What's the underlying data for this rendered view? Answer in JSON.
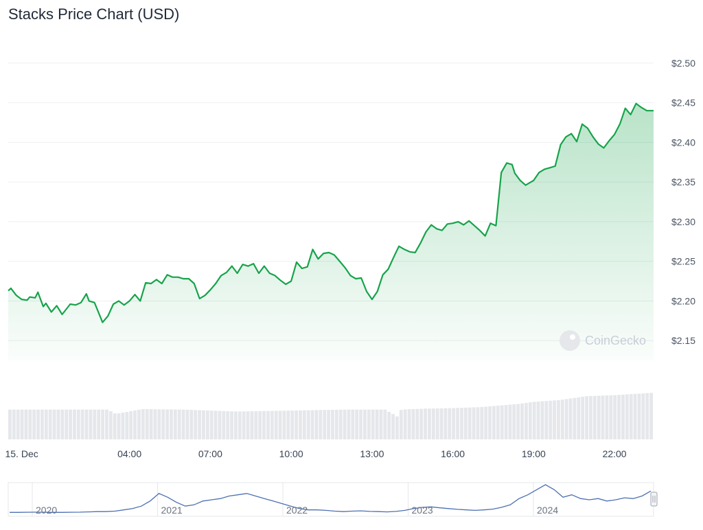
{
  "title": "Stacks Price Chart (USD)",
  "watermark": "CoinGecko",
  "chart_data": {
    "type": "area",
    "title": "Stacks Price Chart (USD)",
    "currency": "USD",
    "ylim": [
      2.125,
      2.525
    ],
    "yticks": [
      2.15,
      2.2,
      2.25,
      2.3,
      2.35,
      2.4,
      2.45,
      2.5
    ],
    "ytick_labels": [
      "$2.15",
      "$2.20",
      "$2.25",
      "$2.30",
      "$2.35",
      "$2.40",
      "$2.45",
      "$2.50"
    ],
    "xlim_hours": [
      -0.5,
      23.45
    ],
    "xticks": [
      0,
      4,
      7,
      10,
      13,
      16,
      19,
      22
    ],
    "xtick_labels": [
      "15. Dec",
      "04:00",
      "07:00",
      "10:00",
      "13:00",
      "16:00",
      "19:00",
      "22:00"
    ],
    "price_series": {
      "name": "Price",
      "color": "#16a34a",
      "hours": [
        -0.5,
        -0.4,
        -0.2,
        0.0,
        0.2,
        0.3,
        0.5,
        0.6,
        0.8,
        0.9,
        1.1,
        1.3,
        1.5,
        1.8,
        2.0,
        2.2,
        2.4,
        2.5,
        2.7,
        3.0,
        3.2,
        3.4,
        3.6,
        3.8,
        4.0,
        4.2,
        4.4,
        4.6,
        4.8,
        5.0,
        5.2,
        5.4,
        5.6,
        5.8,
        6.0,
        6.2,
        6.4,
        6.6,
        6.8,
        7.0,
        7.2,
        7.4,
        7.6,
        7.8,
        8.0,
        8.2,
        8.4,
        8.6,
        8.8,
        9.0,
        9.2,
        9.4,
        9.6,
        9.8,
        10.0,
        10.2,
        10.4,
        10.6,
        10.8,
        11.0,
        11.2,
        11.4,
        11.6,
        11.8,
        12.0,
        12.2,
        12.4,
        12.6,
        12.8,
        13.0,
        13.2,
        13.4,
        13.6,
        13.8,
        14.0,
        14.2,
        14.4,
        14.6,
        14.8,
        15.0,
        15.2,
        15.4,
        15.6,
        15.8,
        16.0,
        16.2,
        16.4,
        16.6,
        16.8,
        17.0,
        17.2,
        17.4,
        17.6,
        17.8,
        18.0,
        18.2,
        18.3,
        18.5,
        18.7,
        19.0,
        19.2,
        19.4,
        19.6,
        19.8,
        20.0,
        20.2,
        20.4,
        20.6,
        20.8,
        21.0,
        21.2,
        21.4,
        21.6,
        21.8,
        22.0,
        22.2,
        22.4,
        22.6,
        22.8,
        23.0,
        23.2,
        23.45
      ],
      "values": [
        2.213,
        2.216,
        2.207,
        2.202,
        2.201,
        2.205,
        2.204,
        2.211,
        2.193,
        2.197,
        2.186,
        2.194,
        2.183,
        2.196,
        2.195,
        2.198,
        2.209,
        2.2,
        2.198,
        2.173,
        2.181,
        2.196,
        2.2,
        2.195,
        2.2,
        2.208,
        2.2,
        2.223,
        2.222,
        2.227,
        2.222,
        2.233,
        2.23,
        2.23,
        2.228,
        2.228,
        2.222,
        2.203,
        2.207,
        2.214,
        2.222,
        2.232,
        2.236,
        2.244,
        2.235,
        2.246,
        2.244,
        2.247,
        2.235,
        2.244,
        2.235,
        2.232,
        2.226,
        2.221,
        2.225,
        2.249,
        2.241,
        2.243,
        2.265,
        2.253,
        2.26,
        2.261,
        2.258,
        2.25,
        2.242,
        2.232,
        2.228,
        2.229,
        2.212,
        2.202,
        2.212,
        2.233,
        2.24,
        2.255,
        2.269,
        2.265,
        2.262,
        2.261,
        2.273,
        2.287,
        2.296,
        2.291,
        2.289,
        2.297,
        2.298,
        2.3,
        2.296,
        2.301,
        2.295,
        2.289,
        2.282,
        2.298,
        2.295,
        2.362,
        2.374,
        2.372,
        2.361,
        2.352,
        2.346,
        2.352,
        2.362,
        2.366,
        2.368,
        2.37,
        2.397,
        2.407,
        2.411,
        2.401,
        2.423,
        2.418,
        2.407,
        2.398,
        2.393,
        2.402,
        2.41,
        2.423,
        2.443,
        2.435,
        2.449,
        2.444,
        2.44,
        2.44
      ]
    },
    "volume_series": {
      "name": "Volume",
      "color": "#e5e7eb",
      "hours": [
        -0.5,
        3.2,
        3.5,
        4.5,
        6.0,
        8.0,
        10.0,
        12.0,
        13.5,
        14.0,
        14.1,
        15.0,
        16.0,
        17.0,
        18.5,
        19.0,
        20.0,
        21.0,
        22.0,
        23.45
      ],
      "relative_values": [
        0.62,
        0.62,
        0.53,
        0.63,
        0.62,
        0.58,
        0.6,
        0.62,
        0.62,
        0.46,
        0.62,
        0.64,
        0.65,
        0.67,
        0.74,
        0.78,
        0.82,
        0.9,
        0.92,
        0.97
      ]
    },
    "navigator": {
      "tick_labels": [
        "2020",
        "2021",
        "2022",
        "2023",
        "2024"
      ],
      "color": "#4c6fb3",
      "values": [
        1,
        1,
        1.05,
        1.1,
        1.05,
        1,
        1,
        1.05,
        1.1,
        1.2,
        1.3,
        1.3,
        1.5,
        2,
        2.5,
        3.5,
        5.5,
        8.5,
        7,
        5,
        3.5,
        4,
        5.5,
        6,
        6.5,
        7.5,
        8,
        8.5,
        7.5,
        6.5,
        5.5,
        4.5,
        3.5,
        2.5,
        2,
        2,
        1.8,
        1.5,
        1.3,
        1.5,
        1.6,
        1.4,
        1.3,
        1.2,
        1.4,
        1.8,
        2.5,
        3,
        3.2,
        2.8,
        2.5,
        2.2,
        2,
        1.8,
        2,
        2.3,
        3,
        4,
        6.5,
        8,
        10,
        12,
        10,
        7,
        8,
        6.5,
        6,
        6.5,
        5.5,
        6,
        6.8,
        6.5,
        7.5,
        9.5
      ]
    }
  }
}
